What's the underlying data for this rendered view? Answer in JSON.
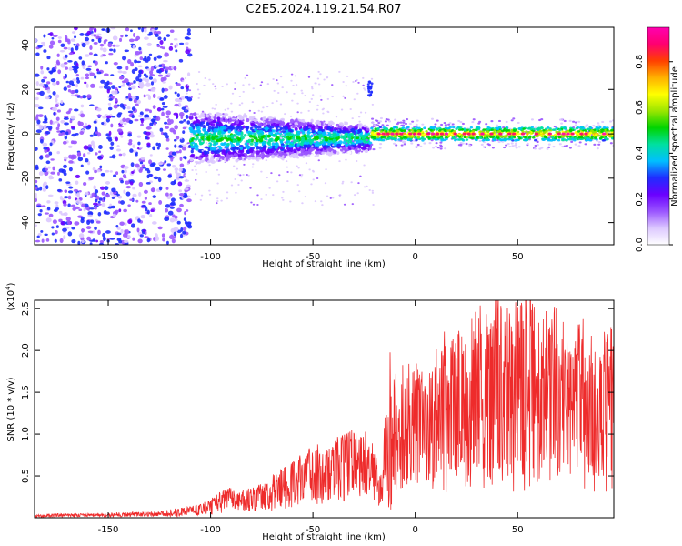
{
  "title": "C2E5.2024.119.21.54.R07",
  "colors": {
    "snr_line": "#ee2b2b",
    "colormap": [
      "#ffffff",
      "#dcc8ff",
      "#9a55ff",
      "#6a00ff",
      "#1f2cff",
      "#00bfff",
      "#00e0a0",
      "#00d400",
      "#9ae600",
      "#ffff00",
      "#ffb000",
      "#ff4000",
      "#ff0070",
      "#ff00b0"
    ]
  },
  "chart_data": [
    {
      "type": "heatmap",
      "xlabel": "Height of straight line (km)",
      "ylabel": "Frequency (Hz)",
      "xlim": [
        -186,
        97
      ],
      "ylim": [
        -50,
        48
      ],
      "xticks": [
        -150,
        -100,
        -50,
        0,
        50
      ],
      "yticks": [
        -40,
        -20,
        0,
        20,
        40
      ],
      "colorbar": {
        "label": "Normalized spectral amplitude",
        "range": [
          0,
          0.95
        ],
        "ticks": [
          0.0,
          0.2,
          0.4,
          0.6,
          0.8
        ]
      },
      "features": [
        {
          "desc": "broadband scatter",
          "x_range": [
            -186,
            -110
          ],
          "freq_range": [
            -50,
            48
          ],
          "amplitude": 0.25
        },
        {
          "desc": "narrowing band",
          "x_range": [
            -110,
            -22
          ],
          "freq_center": -2,
          "freq_halfwidth_start": 12,
          "freq_halfwidth_end": 6,
          "amplitude": 0.45
        },
        {
          "desc": "tight carrier line",
          "x_range": [
            -22,
            97
          ],
          "freq_center": 0,
          "freq_halfwidth": 3,
          "amplitude": 0.85
        },
        {
          "desc": "spur",
          "x_range": [
            -23,
            -21
          ],
          "freq_range": [
            17,
            24
          ],
          "amplitude": 0.3
        }
      ]
    },
    {
      "type": "line",
      "xlabel": "Height of straight line (km)",
      "ylabel": "SNR (10 * v/v)",
      "yscale_label": "(x10^4)",
      "xlim": [
        -186,
        97
      ],
      "ylim": [
        0,
        2.6
      ],
      "xticks": [
        -150,
        -100,
        -50,
        0,
        50
      ],
      "yticks": [
        0.5,
        1.0,
        1.5,
        2.0,
        2.5
      ],
      "series": [
        {
          "x": [
            -186,
            -175,
            -165,
            -150,
            -140,
            -130,
            -125,
            -120,
            -115,
            -110,
            -105,
            -100,
            -95,
            -90,
            -85,
            -80,
            -75,
            -70,
            -65,
            -60,
            -55,
            -50,
            -45,
            -40,
            -35,
            -30,
            -25,
            -20,
            -17,
            -15,
            -12,
            -10,
            -5,
            0,
            5,
            10,
            15,
            20,
            25,
            30,
            35,
            40,
            45,
            50,
            55,
            60,
            65,
            70,
            75,
            80,
            85,
            90,
            95
          ],
          "values": [
            0.02,
            0.03,
            0.03,
            0.03,
            0.04,
            0.04,
            0.05,
            0.05,
            0.06,
            0.08,
            0.1,
            0.15,
            0.2,
            0.25,
            0.2,
            0.22,
            0.25,
            0.3,
            0.35,
            0.4,
            0.5,
            0.55,
            0.55,
            0.6,
            0.6,
            0.75,
            0.7,
            0.6,
            0.3,
            0.75,
            0.9,
            1.0,
            1.1,
            1.2,
            1.0,
            1.3,
            1.4,
            1.5,
            1.3,
            1.6,
            1.5,
            1.7,
            1.5,
            1.6,
            1.8,
            1.4,
            1.7,
            1.5,
            1.4,
            1.5,
            1.4,
            1.4,
            1.5
          ],
          "envelope_max": [
            0.03,
            0.05,
            0.05,
            0.06,
            0.07,
            0.07,
            0.08,
            0.1,
            0.12,
            0.14,
            0.16,
            0.22,
            0.28,
            0.32,
            0.3,
            0.35,
            0.4,
            0.5,
            0.6,
            0.65,
            0.7,
            0.8,
            0.85,
            0.9,
            1.0,
            1.0,
            0.95,
            0.75,
            0.45,
            1.5,
            2.1,
            1.8,
            1.9,
            1.9,
            1.6,
            2.0,
            2.1,
            2.2,
            2.0,
            2.3,
            2.2,
            2.6,
            2.4,
            2.3,
            2.6,
            2.2,
            2.3,
            2.2,
            2.1,
            2.2,
            2.0,
            2.0,
            2.0
          ],
          "envelope_min": [
            0.0,
            0.01,
            0.01,
            0.01,
            0.02,
            0.02,
            0.02,
            0.02,
            0.02,
            0.03,
            0.03,
            0.03,
            0.05,
            0.08,
            0.05,
            0.06,
            0.08,
            0.08,
            0.1,
            0.12,
            0.15,
            0.15,
            0.15,
            0.2,
            0.18,
            0.25,
            0.2,
            0.2,
            0.1,
            0.45,
            0.45,
            0.4,
            0.3,
            0.45,
            0.25,
            0.35,
            0.3,
            0.4,
            0.3,
            0.3,
            0.3,
            0.35,
            0.3,
            0.3,
            0.2,
            0.2,
            0.3,
            0.25,
            0.3,
            0.3,
            0.2,
            0.2,
            0.3
          ]
        }
      ]
    }
  ]
}
